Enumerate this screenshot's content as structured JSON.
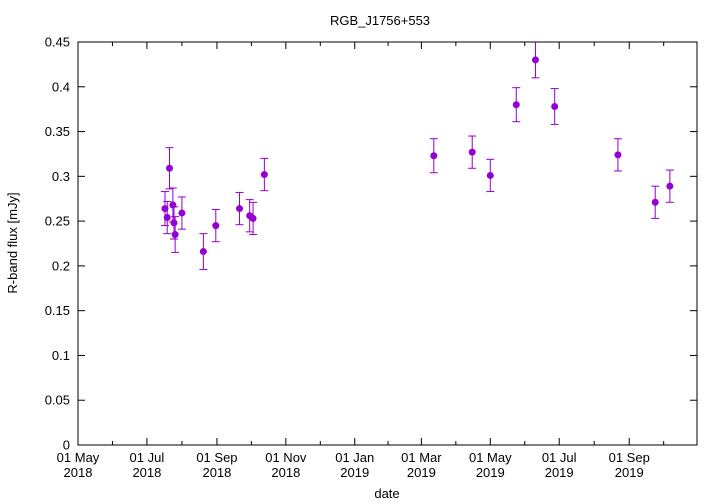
{
  "chart_data": {
    "type": "scatter",
    "title": "RGB_J1756+553",
    "xlabel": "date",
    "ylabel": "R-band flux [mJy]",
    "x_axis": {
      "type": "date",
      "range": [
        "2018-05-01",
        "2019-10-31"
      ],
      "ticks": [
        {
          "date": "2018-05-01",
          "line1": "01 May",
          "line2": "2018"
        },
        {
          "date": "2018-07-01",
          "line1": "01 Jul",
          "line2": "2018"
        },
        {
          "date": "2018-09-01",
          "line1": "01 Sep",
          "line2": "2018"
        },
        {
          "date": "2018-11-01",
          "line1": "01 Nov",
          "line2": "2018"
        },
        {
          "date": "2019-01-01",
          "line1": "01 Jan",
          "line2": "2019"
        },
        {
          "date": "2019-03-01",
          "line1": "01 Mar",
          "line2": "2019"
        },
        {
          "date": "2019-05-01",
          "line1": "01 May",
          "line2": "2019"
        },
        {
          "date": "2019-07-01",
          "line1": "01 Jul",
          "line2": "2019"
        },
        {
          "date": "2019-09-01",
          "line1": "01 Sep",
          "line2": "2019"
        }
      ]
    },
    "y_axis": {
      "range": [
        0,
        0.45
      ],
      "ticks": [
        "0",
        "0.05",
        "0.1",
        "0.15",
        "0.2",
        "0.25",
        "0.3",
        "0.35",
        "0.4",
        "0.45"
      ]
    },
    "grid": false,
    "color": "#9400d3",
    "points": [
      {
        "date": "2018-07-17",
        "y": 0.264,
        "err": 0.019
      },
      {
        "date": "2018-07-19",
        "y": 0.254,
        "err": 0.018
      },
      {
        "date": "2018-07-21",
        "y": 0.309,
        "err": 0.023
      },
      {
        "date": "2018-07-24",
        "y": 0.268,
        "err": 0.019
      },
      {
        "date": "2018-07-25",
        "y": 0.248,
        "err": 0.018
      },
      {
        "date": "2018-07-26",
        "y": 0.235,
        "err": 0.02
      },
      {
        "date": "2018-08-01",
        "y": 0.259,
        "err": 0.018
      },
      {
        "date": "2018-08-20",
        "y": 0.216,
        "err": 0.02
      },
      {
        "date": "2018-08-31",
        "y": 0.245,
        "err": 0.018
      },
      {
        "date": "2018-09-21",
        "y": 0.264,
        "err": 0.018
      },
      {
        "date": "2018-09-30",
        "y": 0.256,
        "err": 0.018
      },
      {
        "date": "2018-10-03",
        "y": 0.253,
        "err": 0.018
      },
      {
        "date": "2018-10-13",
        "y": 0.302,
        "err": 0.018
      },
      {
        "date": "2019-03-12",
        "y": 0.323,
        "err": 0.019
      },
      {
        "date": "2019-04-15",
        "y": 0.327,
        "err": 0.018
      },
      {
        "date": "2019-05-01",
        "y": 0.301,
        "err": 0.018
      },
      {
        "date": "2019-05-24",
        "y": 0.38,
        "err": 0.019
      },
      {
        "date": "2019-06-10",
        "y": 0.43,
        "err": 0.02
      },
      {
        "date": "2019-06-27",
        "y": 0.378,
        "err": 0.02
      },
      {
        "date": "2019-08-22",
        "y": 0.324,
        "err": 0.018
      },
      {
        "date": "2019-09-24",
        "y": 0.271,
        "err": 0.018
      },
      {
        "date": "2019-10-07",
        "y": 0.289,
        "err": 0.018
      }
    ]
  }
}
